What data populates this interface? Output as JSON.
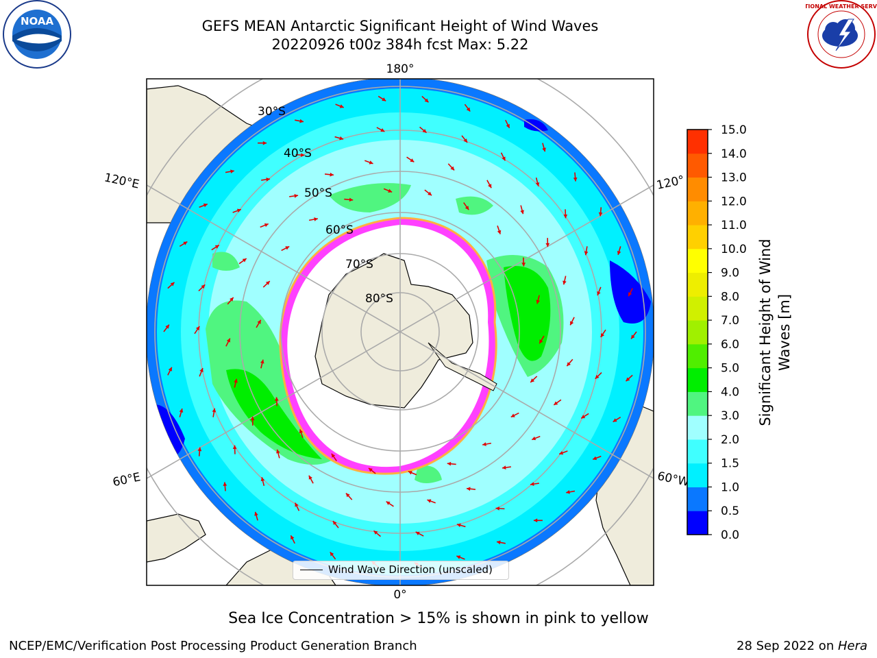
{
  "title": {
    "line1": "GEFS MEAN Antarctic Significant Height of Wind Waves",
    "line2": "20220926 t00z 384h fcst   Max: 5.22"
  },
  "logos": {
    "left": "NOAA",
    "right": "NATIONAL WEATHER SERVICE"
  },
  "map": {
    "meridian_labels": {
      "top": "180°",
      "bottom": "0°",
      "left_upper": "120°E",
      "left_lower": "60°E",
      "right_upper": "120°",
      "right_lower": "60°W"
    },
    "latitude_labels": [
      "30°S",
      "40°S",
      "50°S",
      "60°S",
      "70°S",
      "80°S"
    ],
    "legend_label": "Wind Wave Direction (unscaled)"
  },
  "colorbar": {
    "label_line1": "Significant Height of Wind",
    "label_line2": "Waves [m]",
    "ticks": [
      "0.0",
      "0.5",
      "1.0",
      "1.5",
      "2.0",
      "3.0",
      "4.0",
      "5.0",
      "6.0",
      "7.0",
      "8.0",
      "9.0",
      "10.0",
      "11.0",
      "12.0",
      "13.0",
      "14.0",
      "15.0"
    ],
    "colors": [
      "#0000ff",
      "#0a78ff",
      "#00f0ff",
      "#40ffff",
      "#a0ffff",
      "#50f580",
      "#00ee00",
      "#50ee00",
      "#a0f000",
      "#d0f000",
      "#eeee00",
      "#ffff00",
      "#ffd000",
      "#ffb000",
      "#ff8c00",
      "#ff5a00",
      "#ff3000"
    ]
  },
  "caption": "Sea Ice Concentration > 15% is shown in pink to yellow",
  "footer": {
    "left": "NCEP/EMC/Verification Post Processing Product Generation Branch",
    "right_prefix": "28 Sep 2022 on ",
    "right_host": "Hera"
  }
}
